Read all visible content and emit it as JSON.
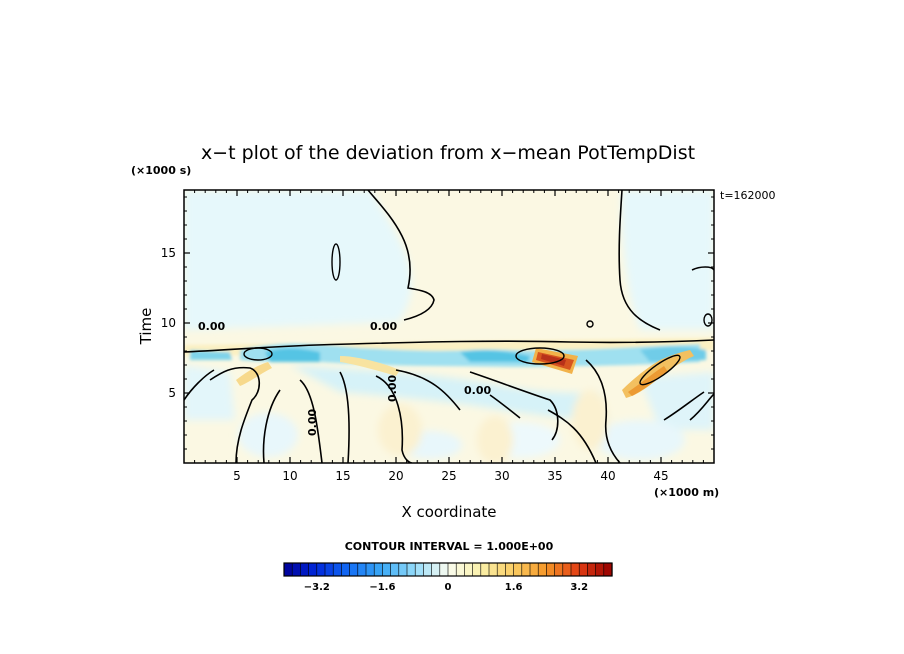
{
  "chart_data": {
    "type": "heatmap",
    "title": "x−t plot of the deviation from x−mean PotTempDist",
    "time_label": "t=162000",
    "xlabel": "X coordinate",
    "ylabel": "Time",
    "x_unit": "(×1000 m)",
    "y_unit": "(×1000 s)",
    "xlim": [
      0,
      50
    ],
    "ylim": [
      0,
      19.5
    ],
    "x_ticks": [
      5,
      10,
      15,
      20,
      25,
      30,
      35,
      40,
      45
    ],
    "y_ticks": [
      5,
      10,
      15
    ],
    "contour_interval_text": "CONTOUR INTERVAL = 1.000E+00",
    "contour_label": "0.00",
    "colorbar": {
      "min": -4.0,
      "max": 4.0,
      "step": 0.2,
      "tick_values": [
        -3.2,
        -1.6,
        0,
        1.6,
        3.2
      ],
      "tick_labels": [
        "−3.2",
        "−1.6",
        "0",
        "1.6",
        "3.2"
      ]
    },
    "features": [
      {
        "kind": "positive_max",
        "x": 35,
        "y": 7.5,
        "value": 3.6
      },
      {
        "kind": "positive_band",
        "x": 8,
        "y": 7.5,
        "value": 1.8
      },
      {
        "kind": "positive_band",
        "x": 45,
        "y": 6.5,
        "value": 1.6
      },
      {
        "kind": "negative_band",
        "x": 25,
        "y": 8.0,
        "value": -1.2
      },
      {
        "kind": "warm_region",
        "x": 30,
        "y": 15,
        "value": 0.2
      },
      {
        "kind": "cool_region",
        "x": 8,
        "y": 15,
        "value": -0.2
      }
    ]
  }
}
